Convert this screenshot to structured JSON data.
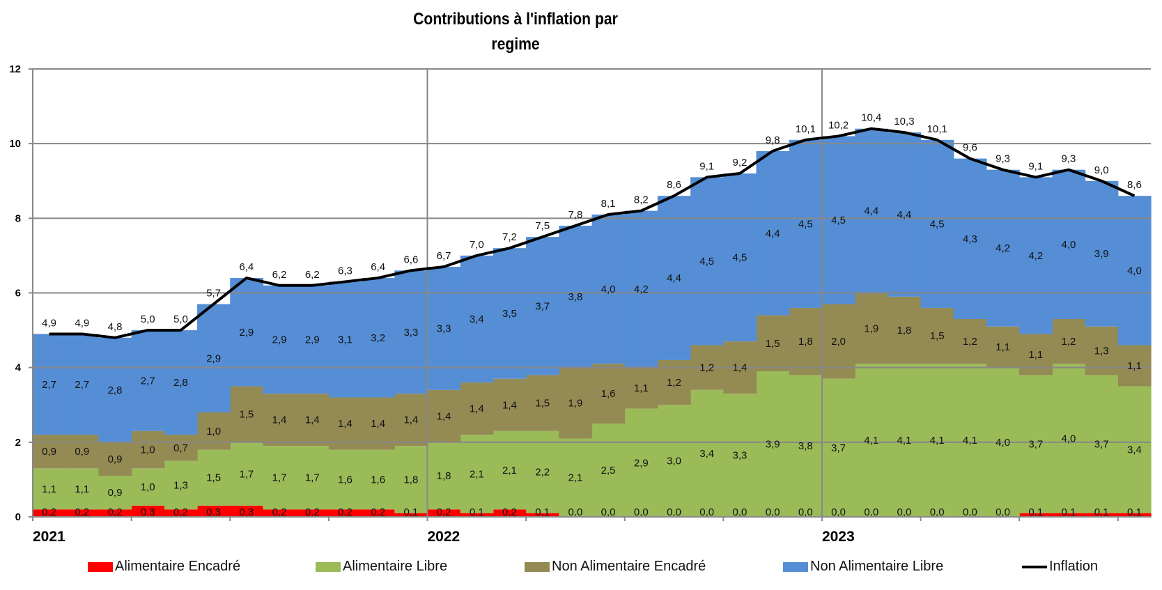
{
  "chart_data": {
    "type": "area",
    "title": "Contributions  à l'inflation par regime",
    "title_lines": [
      "Contributions  à l'inflation par",
      "regime"
    ],
    "xlabel": "",
    "ylabel": "",
    "ylim": [
      0,
      12
    ],
    "yticks": [
      0,
      2,
      4,
      6,
      8,
      10,
      12
    ],
    "grid": true,
    "legend_position": "bottom",
    "x_period": "monthly, Jan 2021 - Oct 2023",
    "year_labels": [
      {
        "label": "2021",
        "month_index": 0
      },
      {
        "label": "2022",
        "month_index": 12
      },
      {
        "label": "2023",
        "month_index": 24
      }
    ],
    "x": [
      "2021-01",
      "2021-02",
      "2021-03",
      "2021-04",
      "2021-05",
      "2021-06",
      "2021-07",
      "2021-08",
      "2021-09",
      "2021-10",
      "2021-11",
      "2021-12",
      "2022-01",
      "2022-02",
      "2022-03",
      "2022-04",
      "2022-05",
      "2022-06",
      "2022-07",
      "2022-08",
      "2022-09",
      "2022-10",
      "2022-11",
      "2022-12",
      "2023-01",
      "2023-02",
      "2023-03",
      "2023-04",
      "2023-05",
      "2023-06",
      "2023-07",
      "2023-08",
      "2023-09",
      "2023-10"
    ],
    "series": [
      {
        "name": "Alimentaire Encadré",
        "kind": "stacked-step-area",
        "color": "#FF0000",
        "values": [
          0.2,
          0.2,
          0.2,
          0.3,
          0.2,
          0.3,
          0.3,
          0.2,
          0.2,
          0.2,
          0.2,
          0.1,
          0.2,
          0.1,
          0.2,
          0.1,
          0.0,
          0.0,
          0.0,
          0.0,
          0.0,
          0.0,
          0.0,
          0.0,
          0.0,
          0.0,
          0.0,
          0.0,
          0.0,
          0.0,
          0.1,
          0.1,
          0.1,
          0.1
        ]
      },
      {
        "name": "Alimentaire Libre",
        "kind": "stacked-step-area",
        "color": "#9BBB59",
        "values": [
          1.1,
          1.1,
          0.9,
          1.0,
          1.3,
          1.5,
          1.7,
          1.7,
          1.7,
          1.6,
          1.6,
          1.8,
          1.8,
          2.1,
          2.1,
          2.2,
          2.1,
          2.5,
          2.9,
          3.0,
          3.4,
          3.3,
          3.9,
          3.8,
          3.7,
          4.1,
          4.1,
          4.1,
          4.1,
          4.0,
          3.7,
          4.0,
          3.7,
          3.4
        ]
      },
      {
        "name": "Non Alimentaire Encadré",
        "kind": "stacked-step-area",
        "color": "#948A54",
        "values": [
          0.9,
          0.9,
          0.9,
          1.0,
          0.7,
          1.0,
          1.5,
          1.4,
          1.4,
          1.4,
          1.4,
          1.4,
          1.4,
          1.4,
          1.4,
          1.5,
          1.9,
          1.6,
          1.1,
          1.2,
          1.2,
          1.4,
          1.5,
          1.8,
          2.0,
          1.9,
          1.8,
          1.5,
          1.2,
          1.1,
          1.1,
          1.2,
          1.3,
          1.1
        ]
      },
      {
        "name": "Non Alimentaire Libre",
        "kind": "stacked-step-area",
        "color": "#558ED5",
        "values": [
          2.7,
          2.7,
          2.8,
          2.7,
          2.8,
          2.9,
          2.9,
          2.9,
          2.9,
          3.1,
          3.2,
          3.3,
          3.3,
          3.4,
          3.5,
          3.7,
          3.8,
          4.0,
          4.2,
          4.4,
          4.5,
          4.5,
          4.4,
          4.5,
          4.5,
          4.4,
          4.4,
          4.5,
          4.3,
          4.2,
          4.2,
          4.0,
          3.9,
          4.0
        ]
      },
      {
        "name": "Inflation",
        "kind": "line",
        "color": "#000000",
        "values": [
          4.9,
          4.9,
          4.8,
          5.0,
          5.0,
          5.7,
          6.4,
          6.2,
          6.2,
          6.3,
          6.4,
          6.6,
          6.7,
          7.0,
          7.2,
          7.5,
          7.8,
          8.1,
          8.2,
          8.6,
          9.1,
          9.2,
          9.8,
          10.1,
          10.2,
          10.4,
          10.3,
          10.1,
          9.6,
          9.3,
          9.1,
          9.3,
          9.0,
          8.6
        ]
      }
    ],
    "decimal_separator": ","
  },
  "legend": {
    "items": [
      {
        "label": "Alimentaire Encadré",
        "color": "#FF0000",
        "symbol": "box"
      },
      {
        "label": "Alimentaire Libre",
        "color": "#9BBB59",
        "symbol": "box"
      },
      {
        "label": "Non Alimentaire Encadré",
        "color": "#948A54",
        "symbol": "box"
      },
      {
        "label": "Non Alimentaire Libre",
        "color": "#558ED5",
        "symbol": "box"
      },
      {
        "label": "Inflation",
        "color": "#000000",
        "symbol": "line"
      }
    ]
  }
}
